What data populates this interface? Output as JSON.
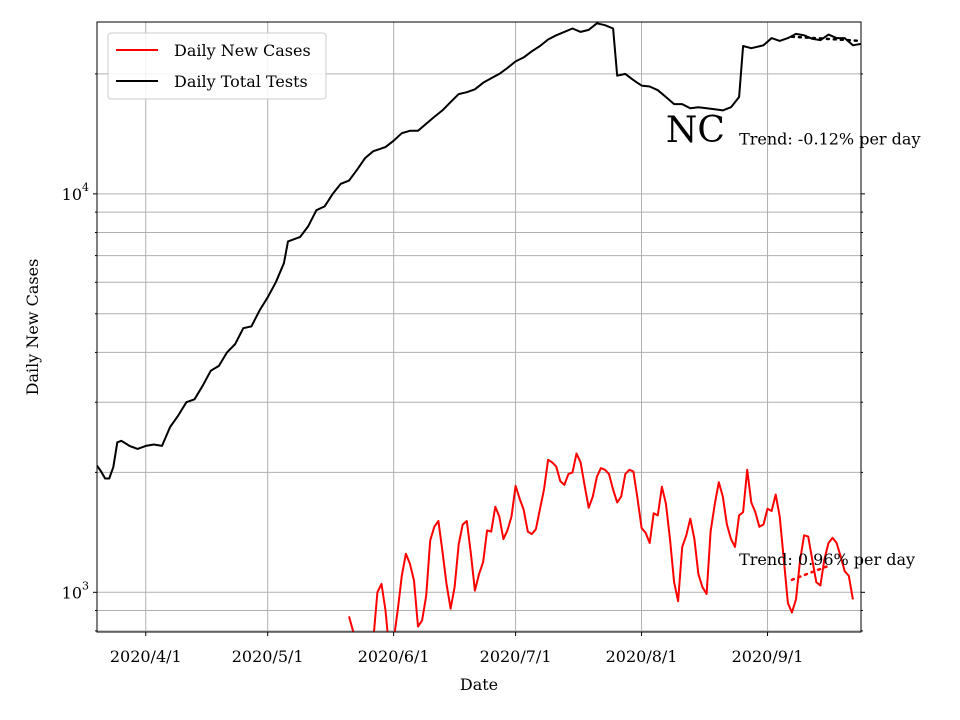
{
  "chart_data": {
    "type": "line",
    "title": "",
    "xlabel": "Date",
    "ylabel": "Daily New Cases",
    "yscale": "log",
    "grid": true,
    "legend_placement": "top-left",
    "x_range": [
      "2020-03-20",
      "2020-09-24"
    ],
    "ylim": [
      795,
      27000
    ],
    "x_ticks": [
      {
        "date": "2020-04-01",
        "label": "2020/4/1"
      },
      {
        "date": "2020-05-01",
        "label": "2020/5/1"
      },
      {
        "date": "2020-06-01",
        "label": "2020/6/1"
      },
      {
        "date": "2020-07-01",
        "label": "2020/7/1"
      },
      {
        "date": "2020-08-01",
        "label": "2020/8/1"
      },
      {
        "date": "2020-09-01",
        "label": "2020/9/1"
      }
    ],
    "y_ticks": [
      {
        "value": 1000,
        "base": "10",
        "exp": "3"
      },
      {
        "value": 10000,
        "base": "10",
        "exp": "4"
      }
    ],
    "series": [
      {
        "name": "Daily New Cases",
        "color": "#ff0000",
        "points": [
          [
            "2020-05-21",
            870
          ],
          [
            "2020-05-22",
            800
          ],
          [
            "2020-05-23",
            760
          ],
          [
            "2020-05-24",
            720
          ],
          [
            "2020-05-25",
            700
          ],
          [
            "2020-05-26",
            700
          ],
          [
            "2020-05-27",
            760
          ],
          [
            "2020-05-28",
            1000
          ],
          [
            "2020-05-29",
            1050
          ],
          [
            "2020-05-30",
            900
          ],
          [
            "2020-05-31",
            700
          ],
          [
            "2020-06-01",
            760
          ],
          [
            "2020-06-02",
            900
          ],
          [
            "2020-06-03",
            1100
          ],
          [
            "2020-06-04",
            1250
          ],
          [
            "2020-06-05",
            1180
          ],
          [
            "2020-06-06",
            1070
          ],
          [
            "2020-06-07",
            820
          ],
          [
            "2020-06-08",
            850
          ],
          [
            "2020-06-09",
            980
          ],
          [
            "2020-06-10",
            1350
          ],
          [
            "2020-06-11",
            1460
          ],
          [
            "2020-06-12",
            1510
          ],
          [
            "2020-06-13",
            1270
          ],
          [
            "2020-06-14",
            1050
          ],
          [
            "2020-06-15",
            910
          ],
          [
            "2020-06-16",
            1030
          ],
          [
            "2020-06-17",
            1320
          ],
          [
            "2020-06-18",
            1480
          ],
          [
            "2020-06-19",
            1510
          ],
          [
            "2020-06-20",
            1250
          ],
          [
            "2020-06-21",
            1010
          ],
          [
            "2020-06-22",
            1110
          ],
          [
            "2020-06-23",
            1190
          ],
          [
            "2020-06-24",
            1430
          ],
          [
            "2020-06-25",
            1420
          ],
          [
            "2020-06-26",
            1640
          ],
          [
            "2020-06-27",
            1550
          ],
          [
            "2020-06-28",
            1360
          ],
          [
            "2020-06-29",
            1430
          ],
          [
            "2020-06-30",
            1550
          ],
          [
            "2020-07-01",
            1850
          ],
          [
            "2020-07-02",
            1720
          ],
          [
            "2020-07-03",
            1610
          ],
          [
            "2020-07-04",
            1420
          ],
          [
            "2020-07-05",
            1400
          ],
          [
            "2020-07-06",
            1440
          ],
          [
            "2020-07-07",
            1620
          ],
          [
            "2020-07-08",
            1810
          ],
          [
            "2020-07-09",
            2150
          ],
          [
            "2020-07-10",
            2120
          ],
          [
            "2020-07-11",
            2070
          ],
          [
            "2020-07-12",
            1900
          ],
          [
            "2020-07-13",
            1860
          ],
          [
            "2020-07-14",
            1980
          ],
          [
            "2020-07-15",
            2000
          ],
          [
            "2020-07-16",
            2230
          ],
          [
            "2020-07-17",
            2120
          ],
          [
            "2020-07-18",
            1850
          ],
          [
            "2020-07-19",
            1630
          ],
          [
            "2020-07-20",
            1740
          ],
          [
            "2020-07-21",
            1950
          ],
          [
            "2020-07-22",
            2050
          ],
          [
            "2020-07-23",
            2030
          ],
          [
            "2020-07-24",
            1980
          ],
          [
            "2020-07-25",
            1810
          ],
          [
            "2020-07-26",
            1680
          ],
          [
            "2020-07-27",
            1740
          ],
          [
            "2020-07-28",
            1980
          ],
          [
            "2020-07-29",
            2030
          ],
          [
            "2020-07-30",
            2010
          ],
          [
            "2020-07-31",
            1720
          ],
          [
            "2020-08-01",
            1450
          ],
          [
            "2020-08-02",
            1410
          ],
          [
            "2020-08-03",
            1330
          ],
          [
            "2020-08-04",
            1580
          ],
          [
            "2020-08-05",
            1560
          ],
          [
            "2020-08-06",
            1840
          ],
          [
            "2020-08-07",
            1670
          ],
          [
            "2020-08-08",
            1360
          ],
          [
            "2020-08-09",
            1060
          ],
          [
            "2020-08-10",
            950
          ],
          [
            "2020-08-11",
            1300
          ],
          [
            "2020-08-12",
            1390
          ],
          [
            "2020-08-13",
            1530
          ],
          [
            "2020-08-14",
            1360
          ],
          [
            "2020-08-15",
            1110
          ],
          [
            "2020-08-16",
            1030
          ],
          [
            "2020-08-17",
            990
          ],
          [
            "2020-08-18",
            1420
          ],
          [
            "2020-08-19",
            1660
          ],
          [
            "2020-08-20",
            1890
          ],
          [
            "2020-08-21",
            1740
          ],
          [
            "2020-08-22",
            1480
          ],
          [
            "2020-08-23",
            1360
          ],
          [
            "2020-08-24",
            1300
          ],
          [
            "2020-08-25",
            1560
          ],
          [
            "2020-08-26",
            1590
          ],
          [
            "2020-08-27",
            2030
          ],
          [
            "2020-08-28",
            1680
          ],
          [
            "2020-08-29",
            1590
          ],
          [
            "2020-08-30",
            1460
          ],
          [
            "2020-08-31",
            1480
          ],
          [
            "2020-09-01",
            1620
          ],
          [
            "2020-09-02",
            1600
          ],
          [
            "2020-09-03",
            1760
          ],
          [
            "2020-09-04",
            1550
          ],
          [
            "2020-09-05",
            1210
          ],
          [
            "2020-09-06",
            940
          ],
          [
            "2020-09-07",
            890
          ],
          [
            "2020-09-08",
            960
          ],
          [
            "2020-09-09",
            1200
          ],
          [
            "2020-09-10",
            1390
          ],
          [
            "2020-09-11",
            1380
          ],
          [
            "2020-09-12",
            1210
          ],
          [
            "2020-09-13",
            1060
          ],
          [
            "2020-09-14",
            1040
          ],
          [
            "2020-09-15",
            1210
          ],
          [
            "2020-09-16",
            1330
          ],
          [
            "2020-09-17",
            1370
          ],
          [
            "2020-09-18",
            1330
          ],
          [
            "2020-09-19",
            1230
          ],
          [
            "2020-09-20",
            1130
          ],
          [
            "2020-09-21",
            1100
          ],
          [
            "2020-09-22",
            960
          ]
        ]
      },
      {
        "name": "Daily Total Tests",
        "color": "#000000",
        "points": [
          [
            "2020-03-20",
            2080
          ],
          [
            "2020-03-21",
            2010
          ],
          [
            "2020-03-22",
            1930
          ],
          [
            "2020-03-23",
            1930
          ],
          [
            "2020-03-24",
            2060
          ],
          [
            "2020-03-25",
            2380
          ],
          [
            "2020-03-26",
            2400
          ],
          [
            "2020-03-28",
            2330
          ],
          [
            "2020-03-30",
            2290
          ],
          [
            "2020-04-01",
            2330
          ],
          [
            "2020-04-03",
            2350
          ],
          [
            "2020-04-05",
            2330
          ],
          [
            "2020-04-07",
            2600
          ],
          [
            "2020-04-09",
            2780
          ],
          [
            "2020-04-11",
            3000
          ],
          [
            "2020-04-13",
            3050
          ],
          [
            "2020-04-15",
            3300
          ],
          [
            "2020-04-17",
            3600
          ],
          [
            "2020-04-19",
            3700
          ],
          [
            "2020-04-21",
            4000
          ],
          [
            "2020-04-23",
            4200
          ],
          [
            "2020-04-25",
            4600
          ],
          [
            "2020-04-27",
            4650
          ],
          [
            "2020-04-29",
            5100
          ],
          [
            "2020-05-01",
            5500
          ],
          [
            "2020-05-03",
            6000
          ],
          [
            "2020-05-05",
            6700
          ],
          [
            "2020-05-06",
            7600
          ],
          [
            "2020-05-09",
            7800
          ],
          [
            "2020-05-11",
            8300
          ],
          [
            "2020-05-13",
            9100
          ],
          [
            "2020-05-15",
            9300
          ],
          [
            "2020-05-17",
            10000
          ],
          [
            "2020-05-19",
            10600
          ],
          [
            "2020-05-21",
            10800
          ],
          [
            "2020-05-23",
            11500
          ],
          [
            "2020-05-25",
            12300
          ],
          [
            "2020-05-27",
            12800
          ],
          [
            "2020-05-30",
            13100
          ],
          [
            "2020-06-01",
            13600
          ],
          [
            "2020-06-03",
            14200
          ],
          [
            "2020-06-05",
            14400
          ],
          [
            "2020-06-07",
            14400
          ],
          [
            "2020-06-09",
            15000
          ],
          [
            "2020-06-11",
            15600
          ],
          [
            "2020-06-13",
            16200
          ],
          [
            "2020-06-15",
            17000
          ],
          [
            "2020-06-17",
            17800
          ],
          [
            "2020-06-19",
            18000
          ],
          [
            "2020-06-21",
            18300
          ],
          [
            "2020-06-23",
            19000
          ],
          [
            "2020-06-25",
            19500
          ],
          [
            "2020-06-27",
            20000
          ],
          [
            "2020-06-29",
            20700
          ],
          [
            "2020-07-01",
            21500
          ],
          [
            "2020-07-03",
            22000
          ],
          [
            "2020-07-05",
            22800
          ],
          [
            "2020-07-07",
            23500
          ],
          [
            "2020-07-09",
            24400
          ],
          [
            "2020-07-11",
            25000
          ],
          [
            "2020-07-13",
            25500
          ],
          [
            "2020-07-15",
            26000
          ],
          [
            "2020-07-17",
            25500
          ],
          [
            "2020-07-19",
            25800
          ],
          [
            "2020-07-21",
            26800
          ],
          [
            "2020-07-23",
            26500
          ],
          [
            "2020-07-25",
            26000
          ],
          [
            "2020-07-26",
            19800
          ],
          [
            "2020-07-28",
            20000
          ],
          [
            "2020-07-30",
            19300
          ],
          [
            "2020-08-01",
            18700
          ],
          [
            "2020-08-03",
            18600
          ],
          [
            "2020-08-05",
            18200
          ],
          [
            "2020-08-07",
            17500
          ],
          [
            "2020-08-09",
            16800
          ],
          [
            "2020-08-11",
            16800
          ],
          [
            "2020-08-13",
            16400
          ],
          [
            "2020-08-15",
            16500
          ],
          [
            "2020-08-17",
            16400
          ],
          [
            "2020-08-19",
            16300
          ],
          [
            "2020-08-21",
            16200
          ],
          [
            "2020-08-23",
            16500
          ],
          [
            "2020-08-25",
            17500
          ],
          [
            "2020-08-26",
            23500
          ],
          [
            "2020-08-28",
            23200
          ],
          [
            "2020-08-31",
            23600
          ],
          [
            "2020-09-02",
            24600
          ],
          [
            "2020-09-04",
            24200
          ],
          [
            "2020-09-06",
            24600
          ],
          [
            "2020-09-08",
            25200
          ],
          [
            "2020-09-10",
            25000
          ],
          [
            "2020-09-12",
            24500
          ],
          [
            "2020-09-14",
            24300
          ],
          [
            "2020-09-16",
            25100
          ],
          [
            "2020-09-18",
            24600
          ],
          [
            "2020-09-20",
            24600
          ],
          [
            "2020-09-22",
            23600
          ],
          [
            "2020-09-24",
            23800
          ]
        ]
      }
    ],
    "trendlines": [
      {
        "color": "#ff0000",
        "points": [
          [
            "2020-09-07",
            1075
          ],
          [
            "2020-09-16",
            1165
          ]
        ],
        "label": "Trend: 0.96% per day",
        "label_at": [
          "2020-08-25",
          1170
        ]
      },
      {
        "color": "#000000",
        "points": [
          [
            "2020-09-07",
            24800
          ],
          [
            "2020-09-24",
            24200
          ]
        ],
        "label": "Trend: -0.12% per day",
        "label_at": [
          "2020-08-25",
          13300
        ]
      }
    ],
    "annotations": [
      {
        "text": "NC",
        "at": [
          "2020-08-07",
          13500
        ],
        "style": "large"
      }
    ]
  }
}
